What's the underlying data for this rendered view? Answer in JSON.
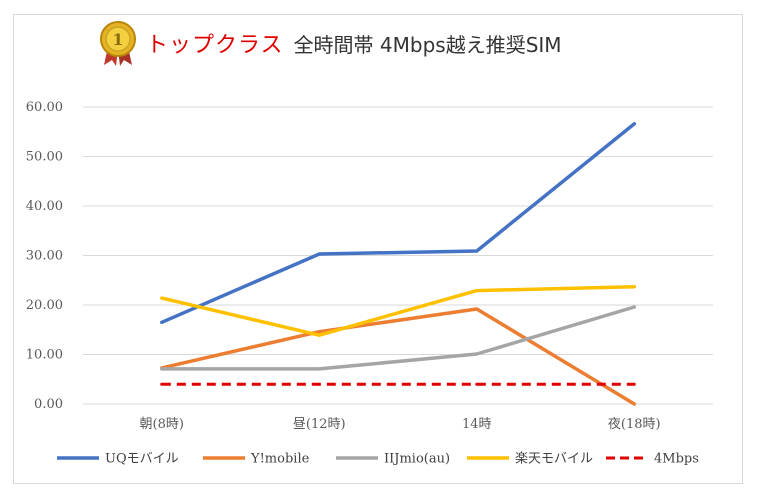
{
  "title": {
    "highlight": "トップクラス",
    "main": "全時間帯 4Mbps越え推奨SIM",
    "medal_number": "1"
  },
  "chart_data": {
    "type": "line",
    "categories": [
      "朝(8時)",
      "昼(12時)",
      "14時",
      "夜(18時)"
    ],
    "ylim": [
      0,
      60
    ],
    "yticks": [
      "0.00",
      "10.00",
      "20.00",
      "30.00",
      "40.00",
      "50.00",
      "60.00"
    ],
    "grid": true,
    "legend_position": "bottom",
    "series": [
      {
        "name": "UQモバイル",
        "color": "#4472c4",
        "dashed": false,
        "values": [
          16.5,
          30.3,
          30.9,
          56.6
        ]
      },
      {
        "name": "Y!mobile",
        "color": "#ed7d31",
        "dashed": false,
        "values": [
          7.3,
          14.6,
          19.2,
          0
        ]
      },
      {
        "name": "IIJmio(au)",
        "color": "#a5a5a5",
        "dashed": false,
        "values": [
          7.1,
          7.1,
          10.1,
          19.6
        ]
      },
      {
        "name": "楽天モバイル",
        "color": "#ffc000",
        "dashed": false,
        "values": [
          21.4,
          13.9,
          22.9,
          23.7
        ]
      },
      {
        "name": "4Mbps",
        "color": "#e00000",
        "dashed": true,
        "values": [
          4,
          4,
          4,
          4
        ]
      }
    ]
  }
}
